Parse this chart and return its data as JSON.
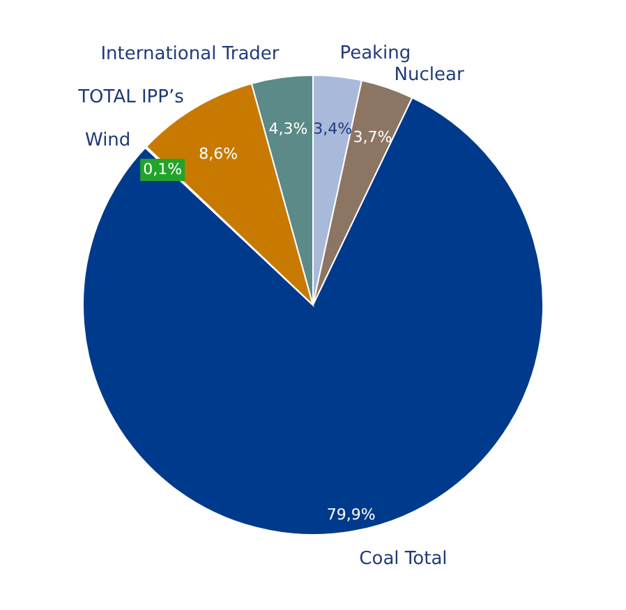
{
  "chart_data": {
    "type": "pie",
    "categories": [
      "Peaking",
      "Nuclear",
      "Coal Total",
      "Wind",
      "TOTAL IPP’s",
      "International Trader"
    ],
    "values": [
      3.4,
      3.7,
      79.9,
      0.1,
      8.6,
      4.3
    ],
    "colors": [
      "#a9b9d9",
      "#8c7563",
      "#003a8c",
      "#22a32a",
      "#c87a00",
      "#5b8a88"
    ],
    "value_labels": [
      "3,4%",
      "3,7%",
      "79,9%",
      "0,1%",
      "8,6%",
      "4,3%"
    ]
  }
}
